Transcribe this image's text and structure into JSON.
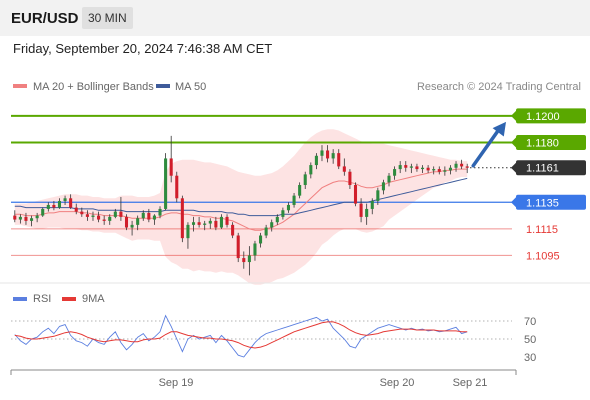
{
  "header": {
    "symbol": "EUR/USD",
    "interval": "30 MIN",
    "datetime": "Friday, September 20, 2024 7:46:38 AM CET"
  },
  "legend": {
    "ma20_bb": "MA 20 + Bollinger Bands",
    "ma50": "MA 50",
    "copyright": "Research © 2024 Trading Central",
    "rsi": "RSI",
    "rsi_ma": "9MA"
  },
  "colors": {
    "resistance": "#5aa800",
    "current": "#333333",
    "support_primary": "#3a77e8",
    "support": "#e53935",
    "bb_fill": "#fde3e3",
    "ma20": "#f08080",
    "ma50": "#3e5b9a",
    "up": "#2e8b3e",
    "down": "#d11e2b",
    "rsi": "#5b7fe0",
    "rsi_ma": "#e53935",
    "arrow": "#2f64b0"
  },
  "chart_data": {
    "type": "candlestick",
    "ylim": [
      1.1075,
      1.1215
    ],
    "x_ticks": [
      "Sep 19",
      "Sep 20",
      "Sep 21"
    ],
    "levels": [
      {
        "label": "1.1200",
        "value": 1.12,
        "kind": "resistance"
      },
      {
        "label": "1.1180",
        "value": 1.118,
        "kind": "resistance"
      },
      {
        "label": "1.1161",
        "value": 1.1161,
        "kind": "current"
      },
      {
        "label": "1.1135",
        "value": 1.1135,
        "kind": "support_primary"
      },
      {
        "label": "1.1115",
        "value": 1.1115,
        "kind": "support"
      },
      {
        "label": "1.1095",
        "value": 1.1095,
        "kind": "support"
      }
    ],
    "candles": [
      [
        1.1125,
        1.1129,
        1.112,
        1.1122
      ],
      [
        1.1122,
        1.1126,
        1.1119,
        1.1124
      ],
      [
        1.1124,
        1.1127,
        1.1118,
        1.1121
      ],
      [
        1.1121,
        1.1125,
        1.1117,
        1.1123
      ],
      [
        1.1123,
        1.1127,
        1.112,
        1.1125
      ],
      [
        1.1125,
        1.1131,
        1.1124,
        1.113
      ],
      [
        1.113,
        1.1135,
        1.1128,
        1.1133
      ],
      [
        1.1133,
        1.1136,
        1.1129,
        1.1131
      ],
      [
        1.1131,
        1.1138,
        1.113,
        1.1136
      ],
      [
        1.1136,
        1.114,
        1.1133,
        1.1138
      ],
      [
        1.1138,
        1.1141,
        1.113,
        1.1131
      ],
      [
        1.1131,
        1.1134,
        1.1126,
        1.1128
      ],
      [
        1.1128,
        1.1131,
        1.1124,
        1.1126
      ],
      [
        1.1126,
        1.1129,
        1.1121,
        1.1124
      ],
      [
        1.1124,
        1.1128,
        1.1121,
        1.1125
      ],
      [
        1.1125,
        1.1128,
        1.112,
        1.1122
      ],
      [
        1.1122,
        1.1125,
        1.1118,
        1.1121
      ],
      [
        1.1121,
        1.1126,
        1.1118,
        1.1124
      ],
      [
        1.1124,
        1.113,
        1.1123,
        1.1128
      ],
      [
        1.1128,
        1.1139,
        1.1121,
        1.1124
      ],
      [
        1.1124,
        1.1126,
        1.1114,
        1.1116
      ],
      [
        1.1116,
        1.1121,
        1.111,
        1.1118
      ],
      [
        1.1118,
        1.1125,
        1.1114,
        1.1123
      ],
      [
        1.1123,
        1.1129,
        1.1121,
        1.1127
      ],
      [
        1.1127,
        1.113,
        1.112,
        1.1122
      ],
      [
        1.1122,
        1.1126,
        1.1118,
        1.1125
      ],
      [
        1.1125,
        1.1132,
        1.1123,
        1.113
      ],
      [
        1.113,
        1.1172,
        1.1129,
        1.1168
      ],
      [
        1.1168,
        1.1185,
        1.115,
        1.1155
      ],
      [
        1.1155,
        1.1158,
        1.1135,
        1.1138
      ],
      [
        1.1138,
        1.114,
        1.1105,
        1.1108
      ],
      [
        1.1108,
        1.112,
        1.11,
        1.1118
      ],
      [
        1.1118,
        1.1124,
        1.1113,
        1.112
      ],
      [
        1.112,
        1.1124,
        1.1116,
        1.1118
      ],
      [
        1.1118,
        1.1121,
        1.1114,
        1.1119
      ],
      [
        1.1119,
        1.1123,
        1.1115,
        1.1121
      ],
      [
        1.1121,
        1.1124,
        1.1114,
        1.1116
      ],
      [
        1.1116,
        1.1126,
        1.1115,
        1.1124
      ],
      [
        1.1124,
        1.1126,
        1.1116,
        1.1118
      ],
      [
        1.1118,
        1.112,
        1.1108,
        1.111
      ],
      [
        1.111,
        1.1112,
        1.109,
        1.1093
      ],
      [
        1.1093,
        1.1098,
        1.1085,
        1.109
      ],
      [
        1.109,
        1.1102,
        1.108,
        1.1095
      ],
      [
        1.1095,
        1.1106,
        1.1091,
        1.1104
      ],
      [
        1.1104,
        1.1112,
        1.1101,
        1.111
      ],
      [
        1.111,
        1.1118,
        1.1108,
        1.1116
      ],
      [
        1.1116,
        1.1122,
        1.1113,
        1.112
      ],
      [
        1.112,
        1.1126,
        1.1118,
        1.1124
      ],
      [
        1.1124,
        1.1131,
        1.1122,
        1.1129
      ],
      [
        1.1129,
        1.1135,
        1.1127,
        1.1133
      ],
      [
        1.1133,
        1.1142,
        1.1131,
        1.114
      ],
      [
        1.114,
        1.115,
        1.1138,
        1.1148
      ],
      [
        1.1148,
        1.1158,
        1.1145,
        1.1156
      ],
      [
        1.1156,
        1.1165,
        1.1153,
        1.1163
      ],
      [
        1.1163,
        1.1172,
        1.116,
        1.117
      ],
      [
        1.117,
        1.1178,
        1.1166,
        1.1174
      ],
      [
        1.1174,
        1.1178,
        1.1165,
        1.1168
      ],
      [
        1.1168,
        1.1175,
        1.1164,
        1.1172
      ],
      [
        1.1172,
        1.1175,
        1.116,
        1.1162
      ],
      [
        1.1162,
        1.1168,
        1.1155,
        1.1158
      ],
      [
        1.1158,
        1.116,
        1.1145,
        1.1148
      ],
      [
        1.1148,
        1.115,
        1.1132,
        1.1134
      ],
      [
        1.1134,
        1.1138,
        1.112,
        1.1124
      ],
      [
        1.1124,
        1.1134,
        1.1118,
        1.113
      ],
      [
        1.113,
        1.1138,
        1.1126,
        1.1136
      ],
      [
        1.1136,
        1.1146,
        1.1133,
        1.1144
      ],
      [
        1.1144,
        1.1152,
        1.1141,
        1.115
      ],
      [
        1.115,
        1.1157,
        1.1147,
        1.1155
      ],
      [
        1.1155,
        1.1162,
        1.1152,
        1.116
      ],
      [
        1.116,
        1.1166,
        1.1157,
        1.1163
      ],
      [
        1.1163,
        1.1166,
        1.1158,
        1.1161
      ],
      [
        1.1161,
        1.1164,
        1.1157,
        1.1162
      ],
      [
        1.1162,
        1.1164,
        1.1158,
        1.116
      ],
      [
        1.116,
        1.1163,
        1.1157,
        1.1161
      ],
      [
        1.1161,
        1.1163,
        1.1157,
        1.1159
      ],
      [
        1.1159,
        1.1162,
        1.1156,
        1.116
      ],
      [
        1.116,
        1.1162,
        1.1156,
        1.1158
      ],
      [
        1.1158,
        1.1162,
        1.1155,
        1.1159
      ],
      [
        1.1159,
        1.1163,
        1.1156,
        1.1161
      ],
      [
        1.1161,
        1.1166,
        1.1158,
        1.1164
      ],
      [
        1.1164,
        1.1167,
        1.116,
        1.1162
      ],
      [
        1.1162,
        1.1164,
        1.1157,
        1.1161
      ]
    ],
    "ma20": [
      1.1126,
      1.1126,
      1.1125,
      1.1125,
      1.1125,
      1.1126,
      1.1127,
      1.1127,
      1.1128,
      1.1128,
      1.1128,
      1.1128,
      1.1127,
      1.1127,
      1.1126,
      1.1126,
      1.1125,
      1.1125,
      1.1125,
      1.1125,
      1.1124,
      1.1123,
      1.1123,
      1.1123,
      1.1123,
      1.1123,
      1.1124,
      1.1126,
      1.1127,
      1.1127,
      1.1126,
      1.1126,
      1.1125,
      1.1125,
      1.1124,
      1.1124,
      1.1123,
      1.1123,
      1.1122,
      1.1121,
      1.1119,
      1.1117,
      1.1115,
      1.1114,
      1.1114,
      1.1115,
      1.1116,
      1.1118,
      1.112,
      1.1123,
      1.1126,
      1.113,
      1.1134,
      1.1138,
      1.1142,
      1.1146,
      1.1148,
      1.115,
      1.1151,
      1.1151,
      1.115,
      1.1149,
      1.1147,
      1.1146,
      1.1146,
      1.1147,
      1.1148,
      1.115,
      1.1151,
      1.1152,
      1.1153,
      1.1154,
      1.1155,
      1.1156,
      1.1157,
      1.1158,
      1.1158,
      1.1159,
      1.1159,
      1.116,
      1.116,
      1.116
    ],
    "bb_upper": [
      1.1134,
      1.1134,
      1.1134,
      1.1135,
      1.1136,
      1.1137,
      1.1138,
      1.1139,
      1.114,
      1.1141,
      1.1141,
      1.1141,
      1.114,
      1.114,
      1.1139,
      1.1139,
      1.1138,
      1.1138,
      1.1138,
      1.114,
      1.114,
      1.114,
      1.1139,
      1.1139,
      1.1139,
      1.114,
      1.1142,
      1.1158,
      1.1164,
      1.1166,
      1.1167,
      1.1167,
      1.1167,
      1.1166,
      1.1165,
      1.1165,
      1.1164,
      1.1163,
      1.1162,
      1.116,
      1.1158,
      1.1157,
      1.1156,
      1.1155,
      1.1155,
      1.1156,
      1.1157,
      1.1159,
      1.1162,
      1.1166,
      1.117,
      1.1175,
      1.118,
      1.1184,
      1.1187,
      1.1189,
      1.119,
      1.119,
      1.1189,
      1.1187,
      1.1185,
      1.1183,
      1.1181,
      1.118,
      1.1179,
      1.1179,
      1.1179,
      1.1178,
      1.1177,
      1.1176,
      1.1175,
      1.1174,
      1.1173,
      1.1172,
      1.1171,
      1.117,
      1.1169,
      1.1168,
      1.1167,
      1.1167,
      1.1166,
      1.1166
    ],
    "bb_lower": [
      1.1118,
      1.1118,
      1.1117,
      1.1116,
      1.1115,
      1.1115,
      1.1116,
      1.1116,
      1.1116,
      1.1115,
      1.1115,
      1.1115,
      1.1114,
      1.1114,
      1.1113,
      1.1113,
      1.1112,
      1.1112,
      1.1112,
      1.111,
      1.1108,
      1.1106,
      1.1107,
      1.1107,
      1.1107,
      1.1106,
      1.1106,
      1.1094,
      1.109,
      1.1088,
      1.1085,
      1.1085,
      1.1083,
      1.1084,
      1.1083,
      1.1083,
      1.1082,
      1.1083,
      1.1082,
      1.1082,
      1.108,
      1.1077,
      1.1074,
      1.1073,
      1.1073,
      1.1074,
      1.1075,
      1.1077,
      1.1078,
      1.108,
      1.1082,
      1.1085,
      1.1088,
      1.1092,
      1.1097,
      1.1103,
      1.1106,
      1.111,
      1.1113,
      1.1115,
      1.1115,
      1.1115,
      1.1113,
      1.1112,
      1.1113,
      1.1115,
      1.1117,
      1.1122,
      1.1125,
      1.1128,
      1.1131,
      1.1134,
      1.1137,
      1.114,
      1.1143,
      1.1146,
      1.1147,
      1.115,
      1.1151,
      1.1153,
      1.1154,
      1.1154
    ],
    "ma50": [
      1.1132,
      1.1132,
      1.1131,
      1.1131,
      1.1131,
      1.1131,
      1.1131,
      1.1131,
      1.1131,
      1.1131,
      1.1131,
      1.113,
      1.113,
      1.113,
      1.113,
      1.1129,
      1.1129,
      1.1129,
      1.1129,
      1.1129,
      1.1128,
      1.1128,
      1.1128,
      1.1128,
      1.1128,
      1.1128,
      1.1128,
      1.1129,
      1.1129,
      1.1129,
      1.1129,
      1.1129,
      1.1129,
      1.1128,
      1.1128,
      1.1128,
      1.1128,
      1.1128,
      1.1127,
      1.1127,
      1.1126,
      1.1126,
      1.1125,
      1.1125,
      1.1125,
      1.1125,
      1.1125,
      1.1125,
      1.1126,
      1.1126,
      1.1126,
      1.1127,
      1.1128,
      1.1129,
      1.113,
      1.1131,
      1.1132,
      1.1133,
      1.1134,
      1.1135,
      1.1135,
      1.1135,
      1.1135,
      1.1135,
      1.1136,
      1.1137,
      1.1138,
      1.1139,
      1.114,
      1.1141,
      1.1142,
      1.1143,
      1.1144,
      1.1145,
      1.1146,
      1.1147,
      1.1148,
      1.1149,
      1.115,
      1.1151,
      1.1152,
      1.1153
    ],
    "projection_arrow": {
      "from": 1.1161,
      "to": 1.12
    },
    "rsi": {
      "ticks": [
        70,
        50,
        30
      ],
      "ylim": [
        20,
        80
      ],
      "rsi": [
        55,
        48,
        44,
        50,
        52,
        58,
        62,
        56,
        64,
        66,
        54,
        48,
        46,
        42,
        50,
        46,
        44,
        52,
        58,
        46,
        38,
        44,
        52,
        56,
        48,
        52,
        58,
        76,
        64,
        50,
        36,
        50,
        54,
        50,
        52,
        54,
        46,
        54,
        48,
        40,
        32,
        30,
        38,
        46,
        52,
        56,
        58,
        60,
        62,
        64,
        66,
        68,
        70,
        72,
        74,
        70,
        72,
        62,
        56,
        50,
        42,
        40,
        50,
        54,
        58,
        62,
        64,
        66,
        64,
        62,
        60,
        62,
        60,
        61,
        59,
        60,
        58,
        59,
        61,
        63,
        56,
        58
      ],
      "ma": [
        54,
        53,
        51,
        50,
        50,
        51,
        52,
        53,
        55,
        57,
        58,
        57,
        55,
        52,
        50,
        48,
        47,
        48,
        49,
        49,
        48,
        47,
        47,
        49,
        50,
        50,
        51,
        55,
        58,
        58,
        56,
        54,
        53,
        52,
        51,
        51,
        50,
        50,
        49,
        48,
        46,
        43,
        41,
        40,
        41,
        43,
        46,
        49,
        52,
        55,
        58,
        60,
        62,
        64,
        66,
        68,
        69,
        69,
        67,
        64,
        60,
        57,
        55,
        54,
        55,
        56,
        58,
        59,
        60,
        61,
        61,
        61,
        60,
        60,
        60,
        60,
        59,
        59,
        59,
        59,
        58,
        58
      ]
    }
  }
}
